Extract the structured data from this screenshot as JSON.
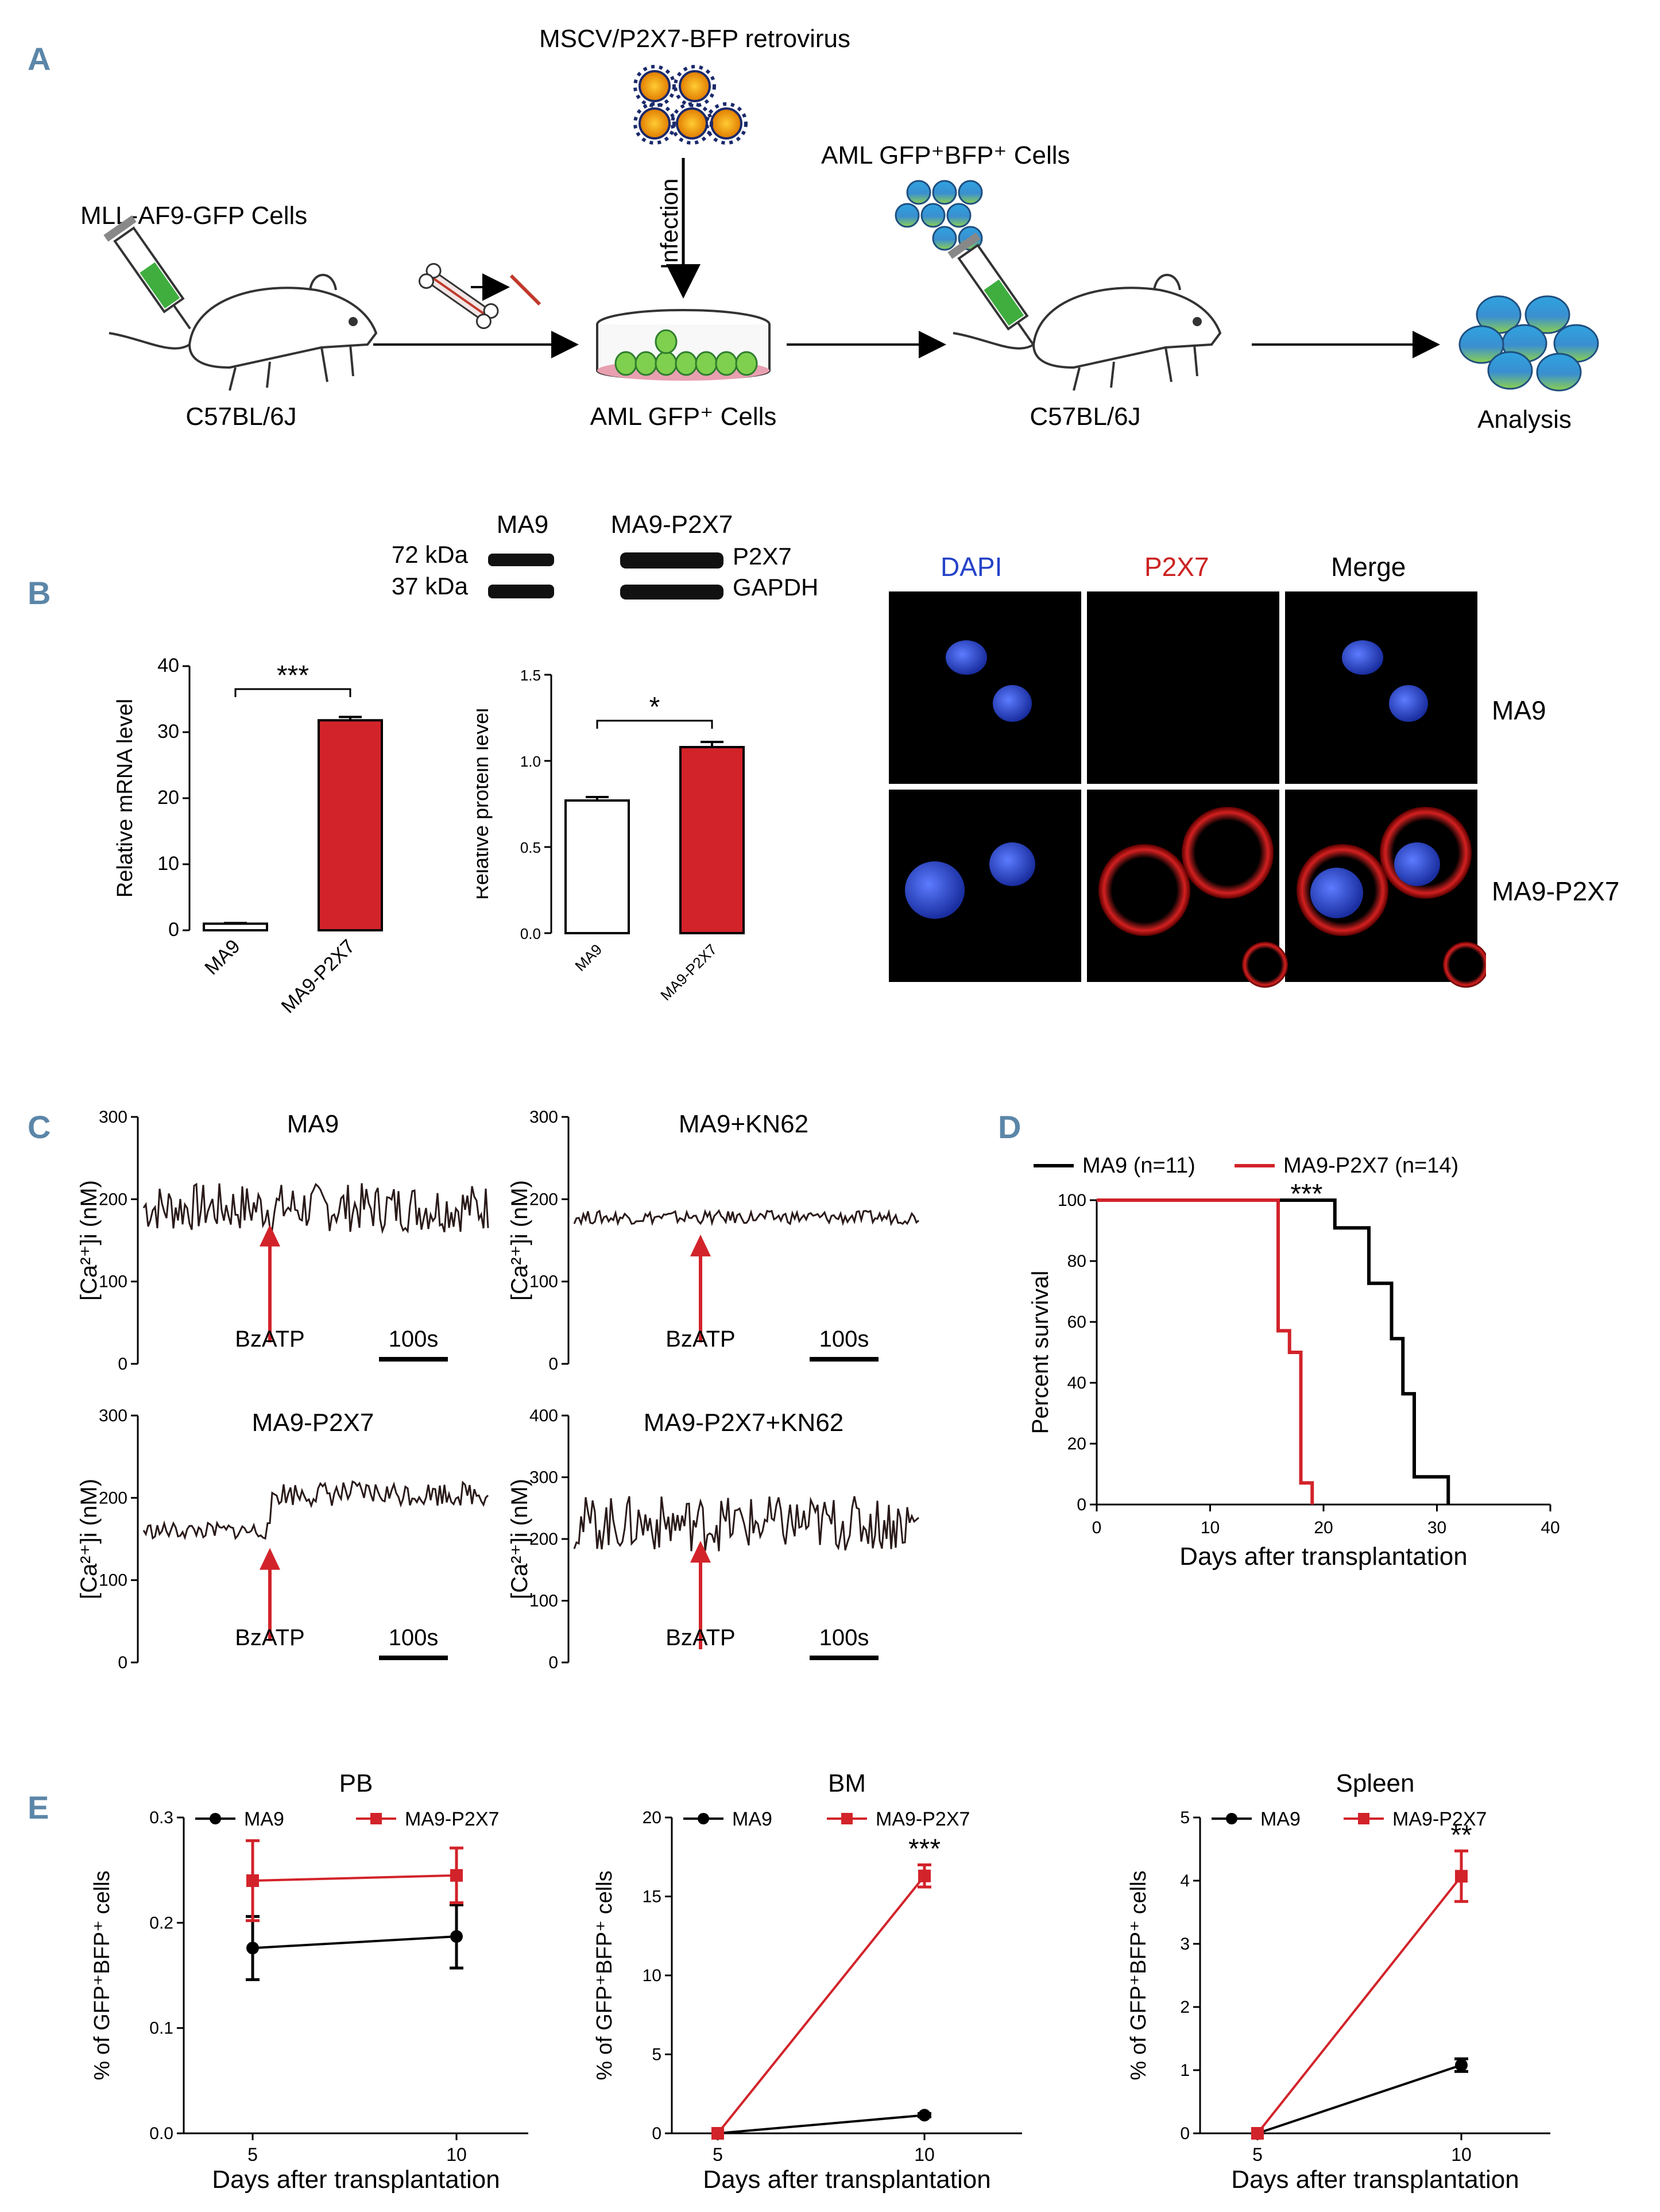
{
  "panel_letters": {
    "a": "A",
    "b": "B",
    "c": "C",
    "d": "D",
    "e": "E"
  },
  "panel_a": {
    "retrovirus": "MSCV/P2X7-BFP retrovirus",
    "infection": "Infection",
    "donor_cells": "MLL-AF9-GFP Cells",
    "mouse1": "C57BL/6J",
    "aml_gfp_cells": "AML GFP⁺ Cells",
    "aml_gfp_bfp_cells": "AML GFP⁺BFP⁺ Cells",
    "mouse2": "C57BL/6J",
    "analysis": "Analysis"
  },
  "panel_b": {
    "western": {
      "col1": "MA9",
      "col2": "MA9-P2X7",
      "kda1": "72 kDa",
      "kda2": "37 kDa",
      "band1": "P2X7",
      "band2": "GAPDH"
    },
    "if_images": {
      "col_dapi": "DAPI",
      "col_p2x7": "P2X7",
      "col_merge": "Merge",
      "row1": "MA9",
      "row2": "MA9-P2X7",
      "colors": {
        "dapi": "#2342c8",
        "p2x7": "#cc2222"
      }
    }
  },
  "panel_c": {
    "stimulus": "BzATP",
    "scale": "100s",
    "ylabel": "[Ca²⁺]i (nM)",
    "traces": [
      {
        "title": "MA9"
      },
      {
        "title": "MA9+KN62"
      },
      {
        "title": "MA9-P2X7"
      },
      {
        "title": "MA9-P2X7+KN62"
      }
    ]
  },
  "chart_data": [
    {
      "type": "bar",
      "id": "b-mrna",
      "categories": [
        "MA9",
        "MA9-P2X7"
      ],
      "values": [
        1.0,
        31.8
      ],
      "errors": [
        0.1,
        0.5
      ],
      "ylabel": "Relative mRNA level",
      "ylim": [
        0,
        40
      ],
      "yticks": [
        0,
        10,
        20,
        30,
        40
      ],
      "significance": "***",
      "colors": [
        "#ffffff",
        "#d2232a"
      ]
    },
    {
      "type": "bar",
      "id": "b-protein",
      "categories": [
        "MA9",
        "MA9-P2X7"
      ],
      "values": [
        0.77,
        1.08
      ],
      "errors": [
        0.02,
        0.03
      ],
      "ylabel": "Relative protein level",
      "ylim": [
        0,
        1.5
      ],
      "yticks": [
        "0.0",
        "0.5",
        "1.0",
        "1.5"
      ],
      "significance": "*",
      "colors": [
        "#ffffff",
        "#d2232a"
      ]
    },
    {
      "type": "line",
      "id": "c-ma9",
      "ylabel": "[Ca²⁺]i (nM)",
      "ylim": [
        0,
        300
      ],
      "yticks": [
        0,
        100,
        200,
        300
      ],
      "baseline": 190,
      "amplitude": 30,
      "after": 190,
      "after_amplitude": 30
    },
    {
      "type": "line",
      "id": "c-ma9-kn62",
      "ylabel": "[Ca²⁺]i (nM)",
      "ylim": [
        0,
        300
      ],
      "yticks": [
        0,
        100,
        200,
        300
      ],
      "baseline": 178,
      "amplitude": 8,
      "after": 178,
      "after_amplitude": 8
    },
    {
      "type": "line",
      "id": "c-p2x7",
      "ylabel": "[Ca²⁺]i (nM)",
      "ylim": [
        0,
        300
      ],
      "yticks": [
        0,
        100,
        200,
        300
      ],
      "baseline": 160,
      "amplitude": 10,
      "after": 205,
      "after_amplitude": 15
    },
    {
      "type": "line",
      "id": "c-p2x7-kn62",
      "ylabel": "[Ca²⁺]i (nM)",
      "ylim": [
        0,
        400
      ],
      "yticks": [
        0,
        100,
        200,
        300,
        400
      ],
      "baseline": 225,
      "amplitude": 45,
      "after": 225,
      "after_amplitude": 45
    },
    {
      "type": "line",
      "id": "d-survival",
      "xlabel": "Days after transplantation",
      "ylabel": "Percent survival",
      "xlim": [
        0,
        40
      ],
      "ylim": [
        0,
        100
      ],
      "xticks": [
        0,
        10,
        20,
        30,
        40
      ],
      "yticks": [
        0,
        20,
        40,
        60,
        80,
        100
      ],
      "significance": "***",
      "series": [
        {
          "name": "MA9",
          "legend_n": "(n=11)",
          "color": "#000000",
          "steps": [
            [
              0,
              100
            ],
            [
              21,
              100
            ],
            [
              21,
              90.9
            ],
            [
              24,
              90.9
            ],
            [
              24,
              72.7
            ],
            [
              26,
              72.7
            ],
            [
              26,
              54.5
            ],
            [
              27,
              54.5
            ],
            [
              27,
              36.4
            ],
            [
              28,
              36.4
            ],
            [
              28,
              9.1
            ],
            [
              31,
              9.1
            ],
            [
              31,
              0
            ]
          ]
        },
        {
          "name": "MA9-P2X7",
          "legend_n": "(n=14)",
          "color": "#d2232a",
          "steps": [
            [
              0,
              100
            ],
            [
              16,
              100
            ],
            [
              16,
              57.1
            ],
            [
              17,
              57.1
            ],
            [
              17,
              50
            ],
            [
              18,
              50
            ],
            [
              18,
              7.1
            ],
            [
              19,
              7.1
            ],
            [
              19,
              0
            ]
          ]
        }
      ]
    },
    {
      "type": "line",
      "id": "e-pb",
      "title": "PB",
      "xlabel": "Days after transplantation",
      "ylabel": "% of GFP⁺BFP⁺ cells",
      "x": [
        5,
        10
      ],
      "ylim": [
        0,
        0.3
      ],
      "yticks": [
        "0.0",
        "0.1",
        "0.2",
        "0.3"
      ],
      "series": [
        {
          "name": "MA9",
          "values": [
            0.176,
            0.187
          ],
          "errors": [
            0.03,
            0.03
          ],
          "color": "#000000",
          "marker": "circle"
        },
        {
          "name": "MA9-P2X7",
          "values": [
            0.24,
            0.245
          ],
          "errors": [
            0.038,
            0.026
          ],
          "color": "#d2232a",
          "marker": "square"
        }
      ],
      "significance": ""
    },
    {
      "type": "line",
      "id": "e-bm",
      "title": "BM",
      "xlabel": "Days after transplantation",
      "ylabel": "% of GFP⁺BFP⁺ cells",
      "x": [
        5,
        10
      ],
      "ylim": [
        0,
        20
      ],
      "yticks": [
        "0",
        "5",
        "10",
        "15",
        "20"
      ],
      "series": [
        {
          "name": "MA9",
          "values": [
            0,
            1.15
          ],
          "errors": [
            0,
            0.1
          ],
          "color": "#000000",
          "marker": "circle"
        },
        {
          "name": "MA9-P2X7",
          "values": [
            0,
            16.3
          ],
          "errors": [
            0,
            0.7
          ],
          "color": "#d2232a",
          "marker": "square"
        }
      ],
      "significance": "***"
    },
    {
      "type": "line",
      "id": "e-spleen",
      "title": "Spleen",
      "xlabel": "Days after transplantation",
      "ylabel": "% of GFP⁺BFP⁺ cells",
      "x": [
        5,
        10
      ],
      "ylim": [
        0,
        5
      ],
      "yticks": [
        "0",
        "1",
        "2",
        "3",
        "4",
        "5"
      ],
      "series": [
        {
          "name": "MA9",
          "values": [
            0,
            1.08
          ],
          "errors": [
            0,
            0.1
          ],
          "color": "#000000",
          "marker": "circle"
        },
        {
          "name": "MA9-P2X7",
          "values": [
            0,
            4.07
          ],
          "errors": [
            0,
            0.4
          ],
          "color": "#d2232a",
          "marker": "square"
        }
      ],
      "significance": "**"
    }
  ]
}
